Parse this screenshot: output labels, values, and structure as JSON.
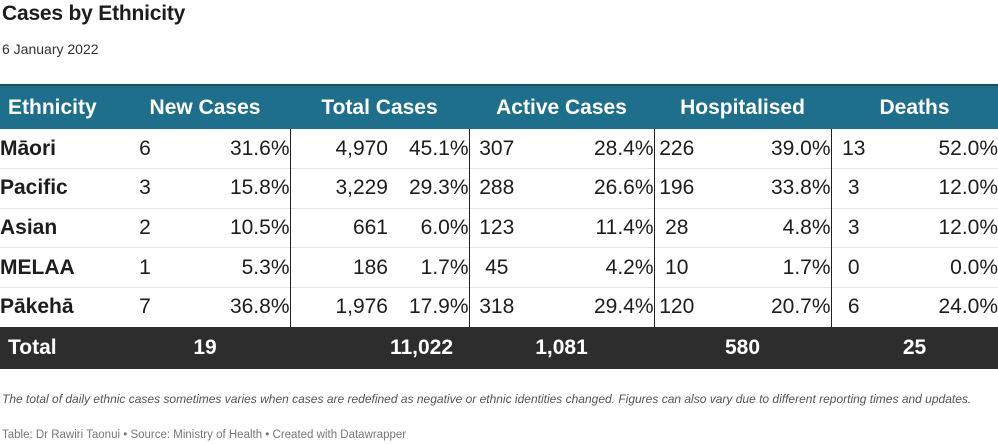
{
  "title": "Cases by Ethnicity",
  "subtitle": "6 January 2022",
  "note": "The total of daily ethnic cases sometimes varies when cases are redefined as negative or ethnic identities changed. Figures can also vary due to different reporting times and updates.",
  "source": "Table: Dr Rawiri Taonui • Source: Ministry of Health • Created with Datawrapper",
  "colors": {
    "header_bg": "#1e6f8c",
    "total_bg": "#2d2d2d"
  },
  "chart_data": {
    "type": "table",
    "title": "Cases by Ethnicity",
    "subtitle": "6 January 2022",
    "columns": [
      "Ethnicity",
      "New Cases",
      "Total Cases",
      "Active Cases",
      "Hospitalised",
      "Deaths"
    ],
    "rows": [
      {
        "ethnicity": "Māori",
        "new": "6",
        "new_pct": "31.6%",
        "total": "4,970",
        "total_pct": "45.1%",
        "active": "307",
        "active_pct": "28.4%",
        "hosp": "226",
        "hosp_pct": "39.0%",
        "deaths": "13",
        "deaths_pct": "52.0%"
      },
      {
        "ethnicity": "Pacific",
        "new": "3",
        "new_pct": "15.8%",
        "total": "3,229",
        "total_pct": "29.3%",
        "active": "288",
        "active_pct": "26.6%",
        "hosp": "196",
        "hosp_pct": "33.8%",
        "deaths": "3",
        "deaths_pct": "12.0%"
      },
      {
        "ethnicity": "Asian",
        "new": "2",
        "new_pct": "10.5%",
        "total": "661",
        "total_pct": "6.0%",
        "active": "123",
        "active_pct": "11.4%",
        "hosp": "28",
        "hosp_pct": "4.8%",
        "deaths": "3",
        "deaths_pct": "12.0%"
      },
      {
        "ethnicity": "MELAA",
        "new": "1",
        "new_pct": "5.3%",
        "total": "186",
        "total_pct": "1.7%",
        "active": "45",
        "active_pct": "4.2%",
        "hosp": "10",
        "hosp_pct": "1.7%",
        "deaths": "0",
        "deaths_pct": "0.0%"
      },
      {
        "ethnicity": "Pākehā",
        "new": "7",
        "new_pct": "36.8%",
        "total": "1,976",
        "total_pct": "17.9%",
        "active": "318",
        "active_pct": "29.4%",
        "hosp": "120",
        "hosp_pct": "20.7%",
        "deaths": "6",
        "deaths_pct": "24.0%"
      }
    ],
    "total": {
      "label": "Total",
      "new": "19",
      "total": "11,022",
      "active": "1,081",
      "hosp": "580",
      "deaths": "25"
    }
  }
}
